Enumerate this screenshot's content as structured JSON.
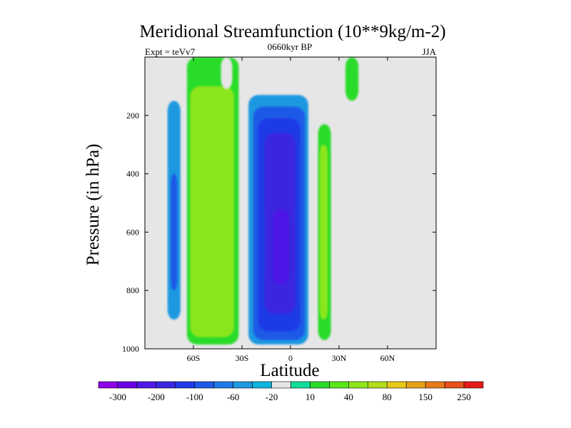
{
  "chart_data": {
    "type": "heatmap",
    "title": "Meridional Streamfunction (10**9kg/m-2)",
    "left_label": "Expt = teVv7",
    "center_label": "0660kyr BP",
    "right_label": "JJA",
    "xlabel": "Latitude",
    "ylabel": "Pressure (in hPa)",
    "xlim": [
      -90,
      90
    ],
    "ylim": [
      1000,
      0
    ],
    "x_ticks": [
      {
        "value": -60,
        "label": "60S"
      },
      {
        "value": -30,
        "label": "30S"
      },
      {
        "value": 0,
        "label": "0"
      },
      {
        "value": 30,
        "label": "30N"
      },
      {
        "value": 60,
        "label": "60N"
      }
    ],
    "y_ticks": [
      {
        "value": 200,
        "label": "200"
      },
      {
        "value": 400,
        "label": "400"
      },
      {
        "value": 600,
        "label": "600"
      },
      {
        "value": 800,
        "label": "800"
      },
      {
        "value": 1000,
        "label": "1000"
      }
    ],
    "background_color": "#e6e6e6",
    "colorbar": {
      "colors": [
        "#8c00e6",
        "#6a00e6",
        "#4e18e6",
        "#3a28e0",
        "#1f3ae6",
        "#1f5ae6",
        "#1f7ae6",
        "#1f98e0",
        "#10b4e0",
        "#e6e6e6",
        "#10dc9c",
        "#2adc2a",
        "#5ae61a",
        "#8ce61a",
        "#b4dc1a",
        "#e6c81a",
        "#e6a01a",
        "#e67a1a",
        "#e6501a",
        "#e61a1a"
      ],
      "labels": [
        {
          "boundary": 1,
          "text": "-300"
        },
        {
          "boundary": 3,
          "text": "-200"
        },
        {
          "boundary": 5,
          "text": "-100"
        },
        {
          "boundary": 7,
          "text": "-60"
        },
        {
          "boundary": 9,
          "text": "-20"
        },
        {
          "boundary": 11,
          "text": "10"
        },
        {
          "boundary": 13,
          "text": "40"
        },
        {
          "boundary": 15,
          "text": "80"
        },
        {
          "boundary": 17,
          "text": "150"
        },
        {
          "boundary": 19,
          "text": "250"
        }
      ]
    },
    "cells": [
      {
        "name": "cell-sh-polar-outer",
        "lat": [
          -78,
          -66
        ],
        "p": [
          0,
          980
        ],
        "value": -20
      },
      {
        "name": "cell-sh-polar-mid",
        "lat": [
          -76,
          -68
        ],
        "p": [
          150,
          900
        ],
        "value": -60
      },
      {
        "name": "cell-sh-polar-core",
        "lat": [
          -74,
          -70
        ],
        "p": [
          400,
          800
        ],
        "value": -100
      },
      {
        "name": "cell-sh-ferrel-outer",
        "lat": [
          -64,
          -32
        ],
        "p": [
          0,
          985
        ],
        "value": 10
      },
      {
        "name": "cell-sh-ferrel-core",
        "lat": [
          -62,
          -35
        ],
        "p": [
          100,
          960
        ],
        "value": 40
      },
      {
        "name": "cell-sh-upper-small",
        "lat": [
          -43,
          -36
        ],
        "p": [
          0,
          110
        ],
        "value": -20
      },
      {
        "name": "cell-hadley-l1",
        "lat": [
          -29,
          13
        ],
        "p": [
          95,
          995
        ],
        "value": -20
      },
      {
        "name": "cell-hadley-l2",
        "lat": [
          -26,
          11
        ],
        "p": [
          130,
          985
        ],
        "value": -60
      },
      {
        "name": "cell-hadley-l3",
        "lat": [
          -23,
          9
        ],
        "p": [
          170,
          970
        ],
        "value": -100
      },
      {
        "name": "cell-hadley-l4",
        "lat": [
          -20,
          6
        ],
        "p": [
          210,
          940
        ],
        "value": -150
      },
      {
        "name": "cell-hadley-l5",
        "lat": [
          -16,
          3
        ],
        "p": [
          260,
          880
        ],
        "value": -200
      },
      {
        "name": "cell-hadley-l6",
        "lat": [
          -11,
          -1
        ],
        "p": [
          520,
          780
        ],
        "value": -250
      },
      {
        "name": "cell-nh-hadley-thin",
        "lat": [
          17,
          25
        ],
        "p": [
          230,
          970
        ],
        "value": 10
      },
      {
        "name": "cell-nh-hadley-core",
        "lat": [
          18,
          23
        ],
        "p": [
          300,
          900
        ],
        "value": 40
      },
      {
        "name": "cell-nh-upper",
        "lat": [
          34,
          42
        ],
        "p": [
          0,
          150
        ],
        "value": 10
      }
    ]
  }
}
